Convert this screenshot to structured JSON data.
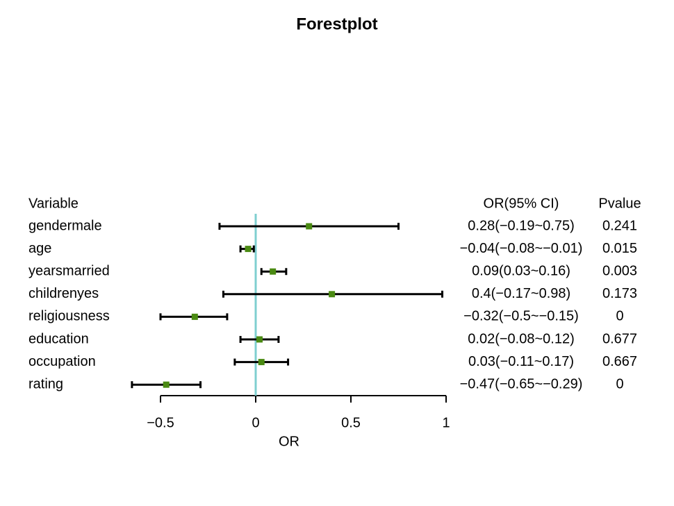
{
  "chart_data": {
    "type": "forest",
    "title": "Forestplot",
    "x_label": "OR",
    "column_headers": {
      "variable": "Variable",
      "ci": "OR(95% CI)",
      "pvalue": "Pvalue"
    },
    "categories": [
      "gendermale",
      "age",
      "yearsmarried",
      "childrenyes",
      "religiousness",
      "education",
      "occupation",
      "rating"
    ],
    "values": [
      0.28,
      -0.04,
      0.09,
      0.4,
      -0.32,
      0.02,
      0.03,
      -0.47
    ],
    "lower": [
      -0.19,
      -0.08,
      0.03,
      -0.17,
      -0.5,
      -0.08,
      -0.11,
      -0.65
    ],
    "upper": [
      0.75,
      -0.01,
      0.16,
      0.98,
      -0.15,
      0.12,
      0.17,
      -0.29
    ],
    "value_labels": [
      "0.28(−0.19~0.75)",
      "−0.04(−0.08~−0.01)",
      "0.09(0.03~0.16)",
      "0.4(−0.17~0.98)",
      "−0.32(−0.5~−0.15)",
      "0.02(−0.08~0.12)",
      "0.03(−0.11~0.17)",
      "−0.47(−0.65~−0.29)"
    ],
    "pvalues": [
      0.241,
      0.015,
      0.003,
      0.173,
      0,
      0.677,
      0.667,
      0
    ],
    "color": "#4a8a12",
    "reference_line": 0,
    "reference_color": "#7fcfd0",
    "xlim": [
      -0.5,
      1
    ],
    "xticks": [
      {
        "value": -0.5,
        "label": "−0.5"
      },
      0,
      0.5,
      1
    ]
  }
}
